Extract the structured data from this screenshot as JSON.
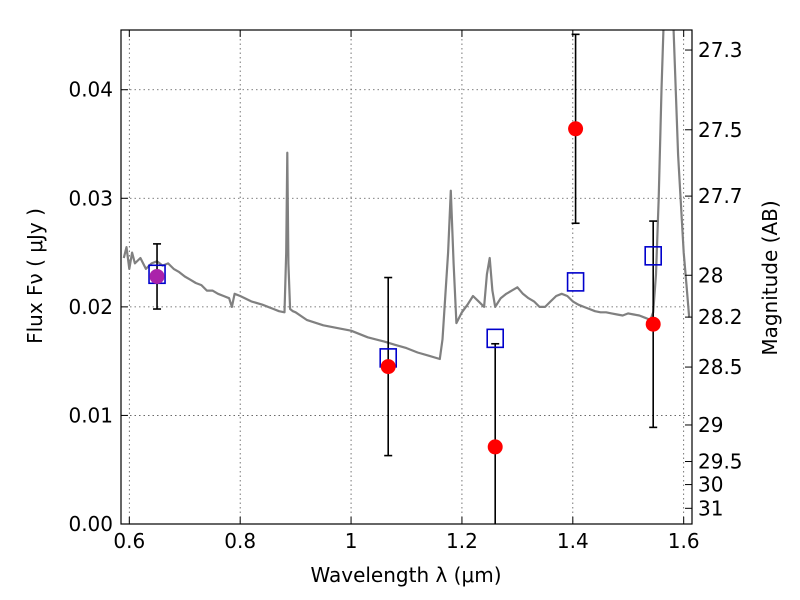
{
  "chart_data": {
    "type": "scatter",
    "xlabel": "Wavelength  λ (μm)",
    "ylabel": "Flux  Fν  ( μJy )",
    "y2label": "Magnitude (AB)",
    "xlim": [
      0.585,
      1.615
    ],
    "ylim": [
      0.0,
      0.0455
    ],
    "x_ticks": [
      0.6,
      0.8,
      1.0,
      1.2,
      1.4,
      1.6
    ],
    "x_tick_labels": [
      "0.6",
      "0.8",
      "1",
      "1.2",
      "1.4",
      "1.6"
    ],
    "y_ticks": [
      0.0,
      0.01,
      0.02,
      0.03,
      0.04
    ],
    "y_tick_labels": [
      "0.00",
      "0.01",
      "0.02",
      "0.03",
      "0.04"
    ],
    "y2_ticks": [
      27.3,
      27.5,
      27.7,
      28,
      28.2,
      28.5,
      29,
      29.5,
      30,
      31
    ],
    "y2_tick_labels": [
      "27.3",
      "27.5",
      "27.7",
      "28",
      "28.2",
      "28.5",
      "29",
      "29.5",
      "30",
      "31"
    ],
    "grid": true,
    "colors": {
      "model": "#808080",
      "observed": "#ff0000",
      "synthetic": "#0000cc",
      "errorbar": "#000000",
      "overlap": "#aa22aa"
    },
    "series": [
      {
        "kind": "line",
        "x": [
          0.59,
          0.595,
          0.6,
          0.605,
          0.61,
          0.62,
          0.63,
          0.64,
          0.65,
          0.66,
          0.67,
          0.68,
          0.69,
          0.7,
          0.71,
          0.72,
          0.73,
          0.74,
          0.75,
          0.76,
          0.77,
          0.78,
          0.785,
          0.79,
          0.8,
          0.82,
          0.84,
          0.86,
          0.87,
          0.88,
          0.883,
          0.885,
          0.887,
          0.89,
          0.895,
          0.9,
          0.92,
          0.95,
          0.98,
          1.0,
          1.03,
          1.06,
          1.08,
          1.1,
          1.12,
          1.14,
          1.16,
          1.165,
          1.17,
          1.175,
          1.18,
          1.185,
          1.19,
          1.2,
          1.21,
          1.22,
          1.23,
          1.24,
          1.245,
          1.25,
          1.255,
          1.26,
          1.27,
          1.28,
          1.29,
          1.3,
          1.31,
          1.32,
          1.33,
          1.34,
          1.35,
          1.36,
          1.37,
          1.38,
          1.39,
          1.4,
          1.41,
          1.42,
          1.43,
          1.44,
          1.45,
          1.46,
          1.47,
          1.48,
          1.49,
          1.5,
          1.51,
          1.52,
          1.53,
          1.54,
          1.545,
          1.55,
          1.555,
          1.56,
          1.565,
          1.57,
          1.575,
          1.58,
          1.59,
          1.6,
          1.605,
          1.61
        ],
        "y": [
          0.0245,
          0.0255,
          0.0235,
          0.025,
          0.024,
          0.0245,
          0.0235,
          0.024,
          0.0242,
          0.0238,
          0.024,
          0.0235,
          0.0232,
          0.0228,
          0.0225,
          0.0222,
          0.022,
          0.0215,
          0.0215,
          0.0212,
          0.021,
          0.0208,
          0.02,
          0.0212,
          0.021,
          0.0205,
          0.0202,
          0.0198,
          0.0196,
          0.0195,
          0.025,
          0.0342,
          0.024,
          0.0198,
          0.0196,
          0.0195,
          0.0188,
          0.0183,
          0.018,
          0.0178,
          0.0172,
          0.0168,
          0.0165,
          0.0162,
          0.0158,
          0.0155,
          0.0152,
          0.017,
          0.021,
          0.025,
          0.0307,
          0.024,
          0.0185,
          0.0195,
          0.0202,
          0.021,
          0.0205,
          0.02,
          0.023,
          0.0245,
          0.0215,
          0.02,
          0.0208,
          0.0212,
          0.0215,
          0.0218,
          0.0212,
          0.0208,
          0.0205,
          0.02,
          0.02,
          0.0205,
          0.021,
          0.0212,
          0.021,
          0.0205,
          0.0202,
          0.02,
          0.0198,
          0.0196,
          0.0195,
          0.0195,
          0.0194,
          0.0193,
          0.0192,
          0.0194,
          0.0193,
          0.0192,
          0.019,
          0.0188,
          0.0195,
          0.023,
          0.03,
          0.04,
          0.048,
          0.048,
          0.048,
          0.048,
          0.034,
          0.025,
          0.022,
          0.019
        ]
      },
      {
        "kind": "open-square",
        "x": [
          0.65,
          1.067,
          1.26,
          1.405,
          1.545
        ],
        "y": [
          0.023,
          0.0153,
          0.0171,
          0.0223,
          0.0247
        ]
      },
      {
        "kind": "filled-circle",
        "x": [
          0.65,
          1.067,
          1.26,
          1.405,
          1.545
        ],
        "y": [
          0.0228,
          0.0145,
          0.0071,
          0.0364,
          0.0184
        ],
        "err": [
          0.003,
          0.0082,
          0.0095,
          0.0087,
          0.0095
        ]
      }
    ]
  }
}
